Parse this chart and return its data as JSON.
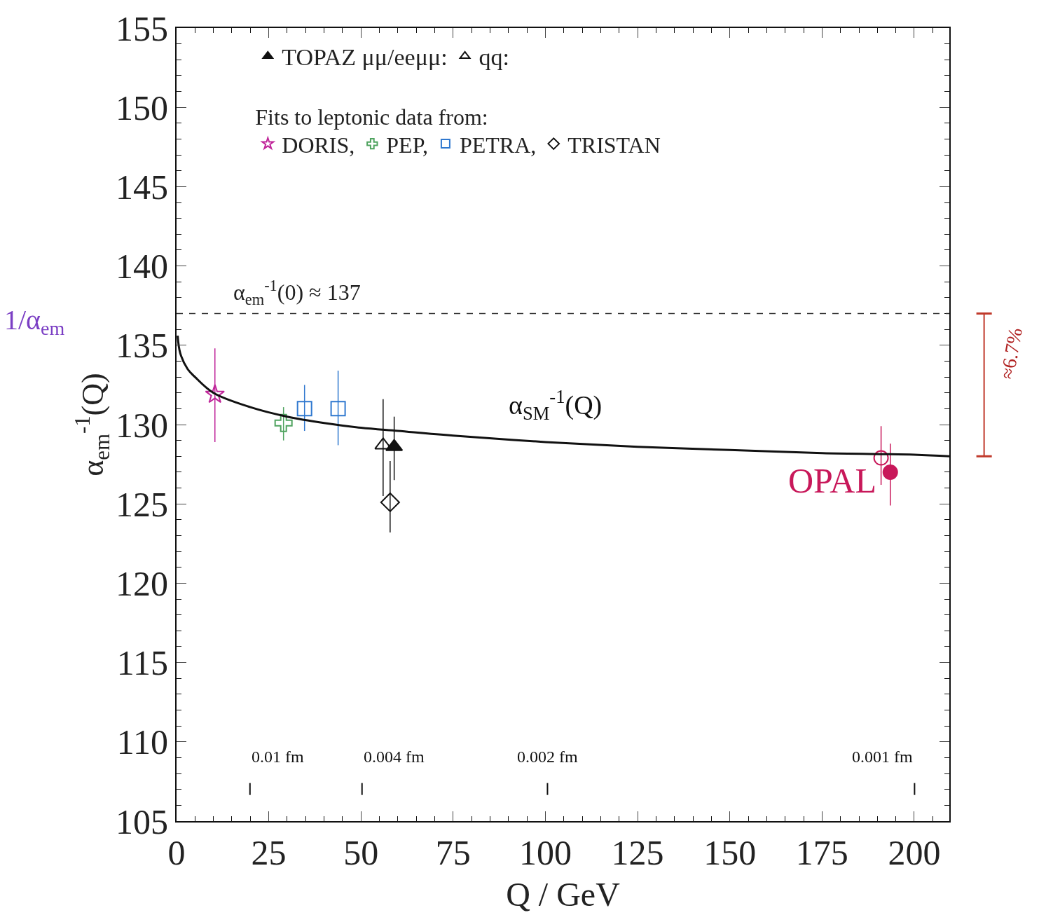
{
  "chart_data": {
    "type": "scatter",
    "xlabel": "Q / GeV",
    "ylabel": "α$_{em}$$^{-1}$(Q)",
    "legend_title": "Fits to leptonic data from:",
    "xlim": [
      0,
      209.5
    ],
    "ylim": [
      105,
      155
    ],
    "xticks": [
      0,
      25,
      50,
      75,
      100,
      125,
      150,
      175,
      200
    ],
    "yticks": [
      105,
      110,
      115,
      120,
      125,
      130,
      135,
      140,
      145,
      150,
      155
    ],
    "grid": false,
    "legend": "top",
    "series": [
      {
        "name": "TOPAZ μμ/eeμμ:",
        "color": "#111111",
        "marker": "triangle",
        "x": [
          59
        ],
        "values": [
          128.6
        ],
        "errors": [
          [
            126.5,
            130.5
          ]
        ]
      },
      {
        "name": "qq:",
        "color": "#111111",
        "marker": "triangle",
        "x": [
          56
        ],
        "values": [
          128.7
        ],
        "errors": [
          [
            125.5,
            131.6
          ]
        ]
      },
      {
        "name": "DORIS,",
        "color": "#c0269a",
        "marker": "star",
        "x": [
          10.4
        ],
        "values": [
          131.9
        ],
        "errors": [
          [
            128.9,
            134.8
          ]
        ]
      },
      {
        "name": "PEP,",
        "color": "#4fa35f",
        "marker": "cross",
        "x": [
          29
        ],
        "values": [
          130.1
        ],
        "errors": [
          [
            129.0,
            131.1
          ]
        ]
      },
      {
        "name": "PETRA,",
        "color": "#2f78cf",
        "marker": "square",
        "x": [
          34.7,
          43.8
        ],
        "values": [
          131.0,
          131.0
        ],
        "errors": [
          [
            129.6,
            132.5
          ],
          [
            128.7,
            133.4
          ]
        ]
      },
      {
        "name": "TRISTAN",
        "color": "#111111",
        "marker": "diamond",
        "x": [
          57.9
        ],
        "values": [
          125.1
        ],
        "errors": [
          [
            123.2,
            127.7
          ]
        ]
      },
      {
        "color": "#c8185a",
        "marker": "circle",
        "x": [
          191
        ],
        "values": [
          127.9
        ],
        "errors": [
          [
            126.2,
            129.9
          ]
        ]
      },
      {
        "name": "OPAL",
        "color": "#c8185a",
        "marker": "circle",
        "x": [
          193.5
        ],
        "values": [
          127.0
        ],
        "errors": [
          [
            124.9,
            128.8
          ]
        ]
      },
      {
        "type": "line",
        "color": "#111111",
        "line_style": "solid",
        "marker": "none",
        "x": [
          0.3,
          1,
          3,
          5,
          10,
          20,
          30,
          40,
          50,
          60,
          75,
          100,
          125,
          150,
          175,
          200,
          209.5
        ],
        "values": [
          135.6,
          134.5,
          133.5,
          133.0,
          132.0,
          131.1,
          130.5,
          130.1,
          129.8,
          129.6,
          129.3,
          128.9,
          128.6,
          128.4,
          128.2,
          128.1,
          128.0
        ]
      }
    ],
    "ref_lines": [
      {
        "axis": "y",
        "value": 137,
        "label": "α$_{em}$$^{-1}$(0) ≈ 137",
        "color": "#333333",
        "line_style": "dashed"
      }
    ],
    "annotations": [
      "α$_{SM}$$^{-1}$(Q)",
      "0.01 fm",
      "0.004 fm",
      "0.002 fm",
      "0.001 fm",
      "1/α$_{em}$",
      "≈6.7%"
    ]
  }
}
